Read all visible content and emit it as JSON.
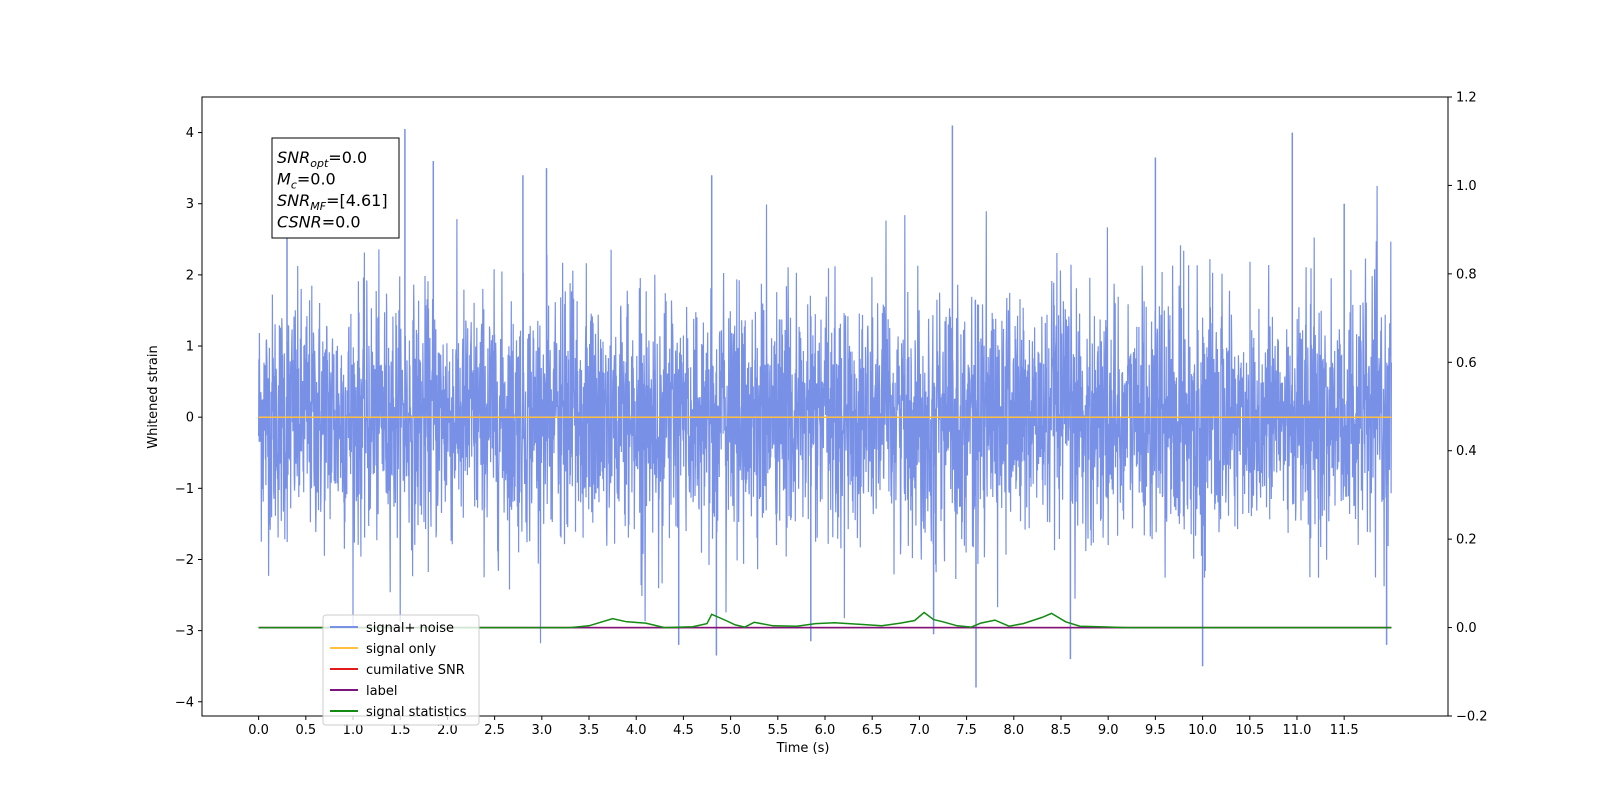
{
  "chart_data": {
    "type": "line",
    "xlabel": "Time (s)",
    "ylabel": "Whitened strain",
    "xlim": [
      -0.6,
      12.6
    ],
    "ylim": [
      -4.2,
      4.5
    ],
    "y2lim": [
      -0.2,
      1.2
    ],
    "x_ticks": [
      "0.0",
      "0.5",
      "1.0",
      "1.5",
      "2.0",
      "2.5",
      "3.0",
      "3.5",
      "4.0",
      "4.5",
      "5.0",
      "5.5",
      "6.0",
      "6.5",
      "7.0",
      "7.5",
      "8.0",
      "8.5",
      "9.0",
      "9.5",
      "10.0",
      "10.5",
      "11.0",
      "11.5"
    ],
    "y_ticks": [
      "4",
      "3",
      "2",
      "1",
      "0",
      "−1",
      "−2",
      "−3",
      "−4"
    ],
    "y2_ticks": [
      "1.2",
      "1.0",
      "0.8",
      "0.6",
      "0.4",
      "0.2",
      "0.0",
      "−0.2"
    ],
    "grid": false,
    "legend_position": "lower-left",
    "info_box": {
      "lines": [
        {
          "sym": "SNR",
          "sub": "opt",
          "rest": "=0.0"
        },
        {
          "sym": "M",
          "sub": "c",
          "rest": "=0.0"
        },
        {
          "sym": "SNR",
          "sub": "MF",
          "rest": "=[4.61]"
        },
        {
          "sym": "CSNR",
          "sub": "",
          "rest": "=0.0"
        }
      ]
    },
    "series": [
      {
        "name": "signal+ noise",
        "color": "#7891e6",
        "kind": "noise",
        "x_range": [
          0.0,
          12.0
        ],
        "y_extent": [
          -3.8,
          4.1
        ],
        "y_mean": 0.0,
        "y_std": 0.85,
        "peaks": [
          [
            0.3,
            2.6
          ],
          [
            1.55,
            4.05
          ],
          [
            1.85,
            3.6
          ],
          [
            2.8,
            3.4
          ],
          [
            3.05,
            3.5
          ],
          [
            4.8,
            3.4
          ],
          [
            7.35,
            4.1
          ],
          [
            9.5,
            3.65
          ],
          [
            10.95,
            4.0
          ],
          [
            11.5,
            3.0
          ],
          [
            7.6,
            -3.8
          ],
          [
            10.0,
            -3.5
          ],
          [
            4.85,
            -3.35
          ],
          [
            4.45,
            -3.2
          ],
          [
            5.85,
            -3.15
          ],
          [
            7.15,
            -3.05
          ],
          [
            8.6,
            -3.4
          ],
          [
            11.95,
            -3.2
          ]
        ]
      },
      {
        "name": "signal only",
        "color": "#ffbf40",
        "axis": "left",
        "points": [
          [
            0.0,
            0.0
          ],
          [
            12.0,
            0.0
          ]
        ]
      },
      {
        "name": "cumilative SNR",
        "color": "#e31a1c",
        "axis": "right",
        "points": [
          [
            0.0,
            0.0
          ],
          [
            12.0,
            0.0
          ]
        ]
      },
      {
        "name": "label",
        "color": "#7a1580",
        "axis": "right",
        "points": [
          [
            0.0,
            0.0
          ],
          [
            12.0,
            0.0
          ]
        ]
      },
      {
        "name": "signal statistics",
        "color": "#138a13",
        "axis": "right",
        "points": [
          [
            0.0,
            0.0
          ],
          [
            3.0,
            0.0
          ],
          [
            3.3,
            0.0
          ],
          [
            3.5,
            0.004
          ],
          [
            3.75,
            0.02
          ],
          [
            3.9,
            0.013
          ],
          [
            4.1,
            0.01
          ],
          [
            4.3,
            0.0
          ],
          [
            4.6,
            0.002
          ],
          [
            4.75,
            0.009
          ],
          [
            4.8,
            0.03
          ],
          [
            4.95,
            0.016
          ],
          [
            5.05,
            0.006
          ],
          [
            5.15,
            0.001
          ],
          [
            5.25,
            0.012
          ],
          [
            5.45,
            0.004
          ],
          [
            5.7,
            0.003
          ],
          [
            5.9,
            0.009
          ],
          [
            6.1,
            0.011
          ],
          [
            6.4,
            0.007
          ],
          [
            6.6,
            0.004
          ],
          [
            6.8,
            0.01
          ],
          [
            6.95,
            0.016
          ],
          [
            7.05,
            0.034
          ],
          [
            7.15,
            0.018
          ],
          [
            7.25,
            0.013
          ],
          [
            7.4,
            0.004
          ],
          [
            7.55,
            0.001
          ],
          [
            7.65,
            0.01
          ],
          [
            7.8,
            0.017
          ],
          [
            7.95,
            0.003
          ],
          [
            8.1,
            0.009
          ],
          [
            8.3,
            0.023
          ],
          [
            8.4,
            0.032
          ],
          [
            8.55,
            0.013
          ],
          [
            8.7,
            0.003
          ],
          [
            8.9,
            0.002
          ],
          [
            9.2,
            0.0
          ],
          [
            12.0,
            0.0
          ]
        ]
      }
    ]
  }
}
